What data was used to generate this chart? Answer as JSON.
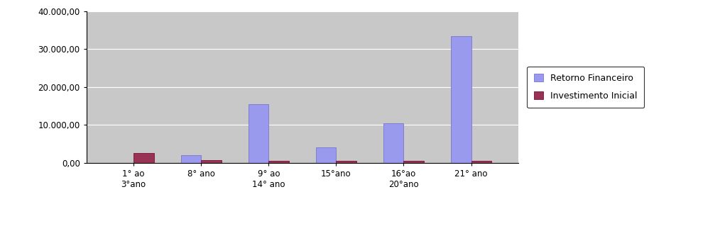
{
  "categories": [
    "1° ao\n3°ano",
    "8° ano",
    "9° ao\n14° ano",
    "15°ano",
    "16°ao\n20°ano",
    "21° ano"
  ],
  "retorno_financeiro": [
    0,
    2000,
    15500,
    4000,
    10500,
    33500
  ],
  "investimento_inicial": [
    2500,
    700,
    500,
    500,
    500,
    500
  ],
  "bar_color_retorno": "#9999ee",
  "bar_color_investimento": "#993355",
  "bar_edgecolor_retorno": "#7777cc",
  "bar_edgecolor_investimento": "#771133",
  "plot_bg_color": "#c8c8c8",
  "ylim": [
    0,
    40000
  ],
  "yticks": [
    0,
    10000,
    20000,
    30000,
    40000
  ],
  "legend_labels": [
    "Retorno Financeiro",
    "Investimento Inicial"
  ],
  "bar_width": 0.3,
  "figsize": [
    10.14,
    3.19
  ],
  "dpi": 100
}
